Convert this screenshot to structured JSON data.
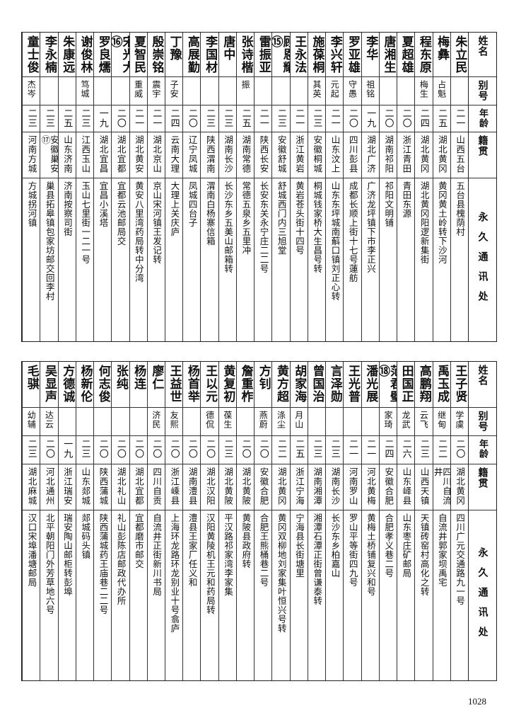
{
  "headers": {
    "name": "姓名",
    "alias": "别号",
    "age": "年龄",
    "native": "籍贯",
    "address": "永久通讯处"
  },
  "tables": [
    {
      "rows": [
        {
          "name": "朱立民",
          "alias": "",
          "age": "二一",
          "native": "山西五台",
          "address": "五台县槐荫村"
        },
        {
          "name": "梅彝",
          "alias": "占魁",
          "age": "二五",
          "native": "湖北黄冈",
          "address": "黄冈黄土岭转下沙河"
        },
        {
          "name": "程东原",
          "alias": "梅生",
          "age": "二四",
          "native": "湖北黄冈",
          "address": "湖北黄冈阳逻新集街"
        },
        {
          "name": "夏超雄",
          "alias": "",
          "age": "二〇",
          "native": "浙江青田",
          "address": "青田东源"
        },
        {
          "name": "唐湘生",
          "alias": "",
          "age": "二〇",
          "native": "湖南祁阳",
          "address": "祁阳文明铺"
        },
        {
          "name": "李华",
          "alias": "祖铭",
          "age": "一九",
          "native": "湖北广济",
          "address": "广济龙坪镇下市李正兴"
        },
        {
          "name": "罗亚雄",
          "alias": "守愚",
          "age": "二〇",
          "native": "四川彭县",
          "address": "成都长顺上街十七号蓮舫"
        },
        {
          "name": "李兴轩",
          "alias": "元起",
          "age": "二一",
          "native": "山东汶上",
          "address": "山东东坪城南蔛口镇刘正心转"
        },
        {
          "name": "施葆桐",
          "alias": "其英",
          "age": "二三",
          "native": "安徽桐城",
          "address": "桐城钱家桥大生昌号转"
        },
        {
          "name": "王永法",
          "alias": "",
          "age": "二一",
          "native": "浙江黄岩",
          "address": "黄岩苍头街十四号"
        },
        {
          "name": "顾恩耀⑮",
          "alias": "",
          "age": "二三",
          "native": "安徽舒城",
          "address": "舒城西门内三旭堂"
        },
        {
          "name": "雷振亚",
          "alias": "",
          "age": "二一",
          "native": "陕西长安",
          "address": "长安东关永宁庄二二号"
        },
        {
          "name": "张诗楷",
          "alias": "振",
          "age": "二五",
          "native": "湖南常德",
          "address": "常德五泉乡五里冲"
        },
        {
          "name": "唐中",
          "alias": "",
          "age": "二三",
          "native": "湖南长沙",
          "address": "长沙东乡五美山邮箱转"
        },
        {
          "name": "李国材",
          "alias": "",
          "age": "二三",
          "native": "陕西渭南",
          "address": "渭南白杨寨信箱"
        },
        {
          "name": "高展勤",
          "alias": "",
          "age": "二〇",
          "native": "辽宁凤城",
          "address": "凤城四台子"
        },
        {
          "name": "丁豫",
          "alias": "子安",
          "age": "二四",
          "native": "云南大理",
          "address": "大理上关庆庐"
        },
        {
          "name": "殷崇铭",
          "alias": "震宇",
          "age": "二一",
          "native": "湖北京山",
          "address": "京山宋河镇王发记转"
        },
        {
          "name": "夏智民",
          "alias": "重威",
          "age": "二一",
          "native": "湖北黄安",
          "address": "黄安八里湾药局转中分湾"
        },
        {
          "name": "宋光大⑯",
          "alias": "",
          "age": "二〇",
          "native": "湖北宜都",
          "address": "宜都云池邮局交"
        },
        {
          "name": "罗良燸",
          "alias": "",
          "age": "一九",
          "native": "湖北宜昌",
          "address": "宜昌小溪塔"
        },
        {
          "name": "谢俊林",
          "alias": "笃城",
          "age": "二三",
          "native": "江西玉山",
          "address": "玉山七里街一二一号"
        },
        {
          "name": "朱康远",
          "alias": "",
          "age": "二五",
          "native": "山东济南",
          "address": "济南按察司街"
        },
        {
          "name": "李永楠",
          "alias": "",
          "age": "二三",
          "native": "安徽巢安⑰",
          "address": "巢县拓皋镇包家坊邮交回李村"
        },
        {
          "name": "童士俊",
          "alias": "杰岑",
          "age": "二三",
          "native": "河南方城",
          "address": "方城拐河镇"
        }
      ]
    },
    {
      "rows": [
        {
          "name": "王子贤",
          "alias": "学虞",
          "age": "二〇",
          "native": "湖北黄冈",
          "address": "四川广元交通路九一号"
        },
        {
          "name": "禹玉成",
          "alias": "继甸",
          "age": "二二",
          "native": "四川自流井",
          "address": "自流井郭家坝禹宅"
        },
        {
          "name": "高鹏翔",
          "alias": "云飞",
          "age": "二三",
          "native": "山西天镇",
          "address": "天镇砖窑村高化之转"
        },
        {
          "name": "田国正",
          "alias": "龙武",
          "age": "二六",
          "native": "山东峄县",
          "address": "山东枣庄矿邮局"
        },
        {
          "name": "范君璧⑱",
          "alias": "家琦",
          "age": "二四",
          "native": "安徽合肥",
          "address": "合肥孝义巷二号"
        },
        {
          "name": "潘光展",
          "alias": "",
          "age": "二一",
          "native": "河北黄梅",
          "address": "黄梅土桥铺复兴和号"
        },
        {
          "name": "王光普",
          "alias": "",
          "age": "二一",
          "native": "河南罗山",
          "address": "罗山平等街四九号"
        },
        {
          "name": "言泽勋",
          "alias": "",
          "age": "二三",
          "native": "湖南长沙",
          "address": "长沙东乡柏嘉山"
        },
        {
          "name": "曾国治",
          "alias": "",
          "age": "二三",
          "native": "湖南湘潭",
          "address": "湘潭石潭正街曾谦泰转"
        },
        {
          "name": "胡家海",
          "alias": "月山",
          "age": "二五",
          "native": "浙江宁海",
          "address": "宁海县长街塘里"
        },
        {
          "name": "黄方超",
          "alias": "涤尘",
          "age": "二二",
          "native": "湖北黄冈",
          "address": "黄冈双柳地刘家集叶恒兴号转"
        },
        {
          "name": "方钊",
          "alias": "燕蔚",
          "age": "二〇",
          "native": "安徽合肥",
          "address": "合肥王熊桶巷二号"
        },
        {
          "name": "詹重柞",
          "alias": "",
          "age": "二〇",
          "native": "湖北黄陂",
          "address": "黄陂县政府转"
        },
        {
          "name": "黄复初",
          "alias": "葆生",
          "age": "二三",
          "native": "湖北黄陂",
          "address": "平汉路祁家湾李家集"
        },
        {
          "name": "王以元",
          "alias": "德侃",
          "age": "二〇",
          "native": "湖北汉阳",
          "address": "汉阳黄陵机王元和药局转"
        },
        {
          "name": "杨首举",
          "alias": "",
          "age": "二〇",
          "native": "湖南澧县",
          "address": "澧县王家厂任义和"
        },
        {
          "name": "王益世",
          "alias": "友熙",
          "age": "二〇",
          "native": "浙江嵊县",
          "address": "上海环龙路环龙别业十号翕庐"
        },
        {
          "name": "廖仁",
          "alias": "济民",
          "age": "二〇",
          "native": "四川自贡",
          "address": "自流井正街新川书局"
        },
        {
          "name": "杨连",
          "alias": "",
          "age": "二〇",
          "native": "湖北宜都",
          "address": "宜都磨市邮交"
        },
        {
          "name": "张纯",
          "alias": "",
          "age": "二〇",
          "native": "湖北礼山",
          "address": "礼山彭陈店邮政代办所"
        },
        {
          "name": "何志俊",
          "alias": "",
          "age": "二〇",
          "native": "陕西蒲城",
          "address": "陕西蒲城药王庙巷二二号"
        },
        {
          "name": "杨新伦",
          "alias": "",
          "age": "二三",
          "native": "山东郯城",
          "address": "郯城码头镇"
        },
        {
          "name": "方德诚",
          "alias": "",
          "age": "一九",
          "native": "浙江瑞安",
          "address": "瑞安陶山邮柜转彭埠"
        },
        {
          "name": "吴显声",
          "alias": "达云",
          "age": "二〇",
          "native": "河北通州",
          "address": "北平朝阳门外芳草地六号"
        },
        {
          "name": "毛骐",
          "alias": "幼辅",
          "age": "二三",
          "native": "湖北麻城",
          "address": "汉口宋埠潘塘邮局"
        }
      ]
    }
  ],
  "page_number": "1028"
}
